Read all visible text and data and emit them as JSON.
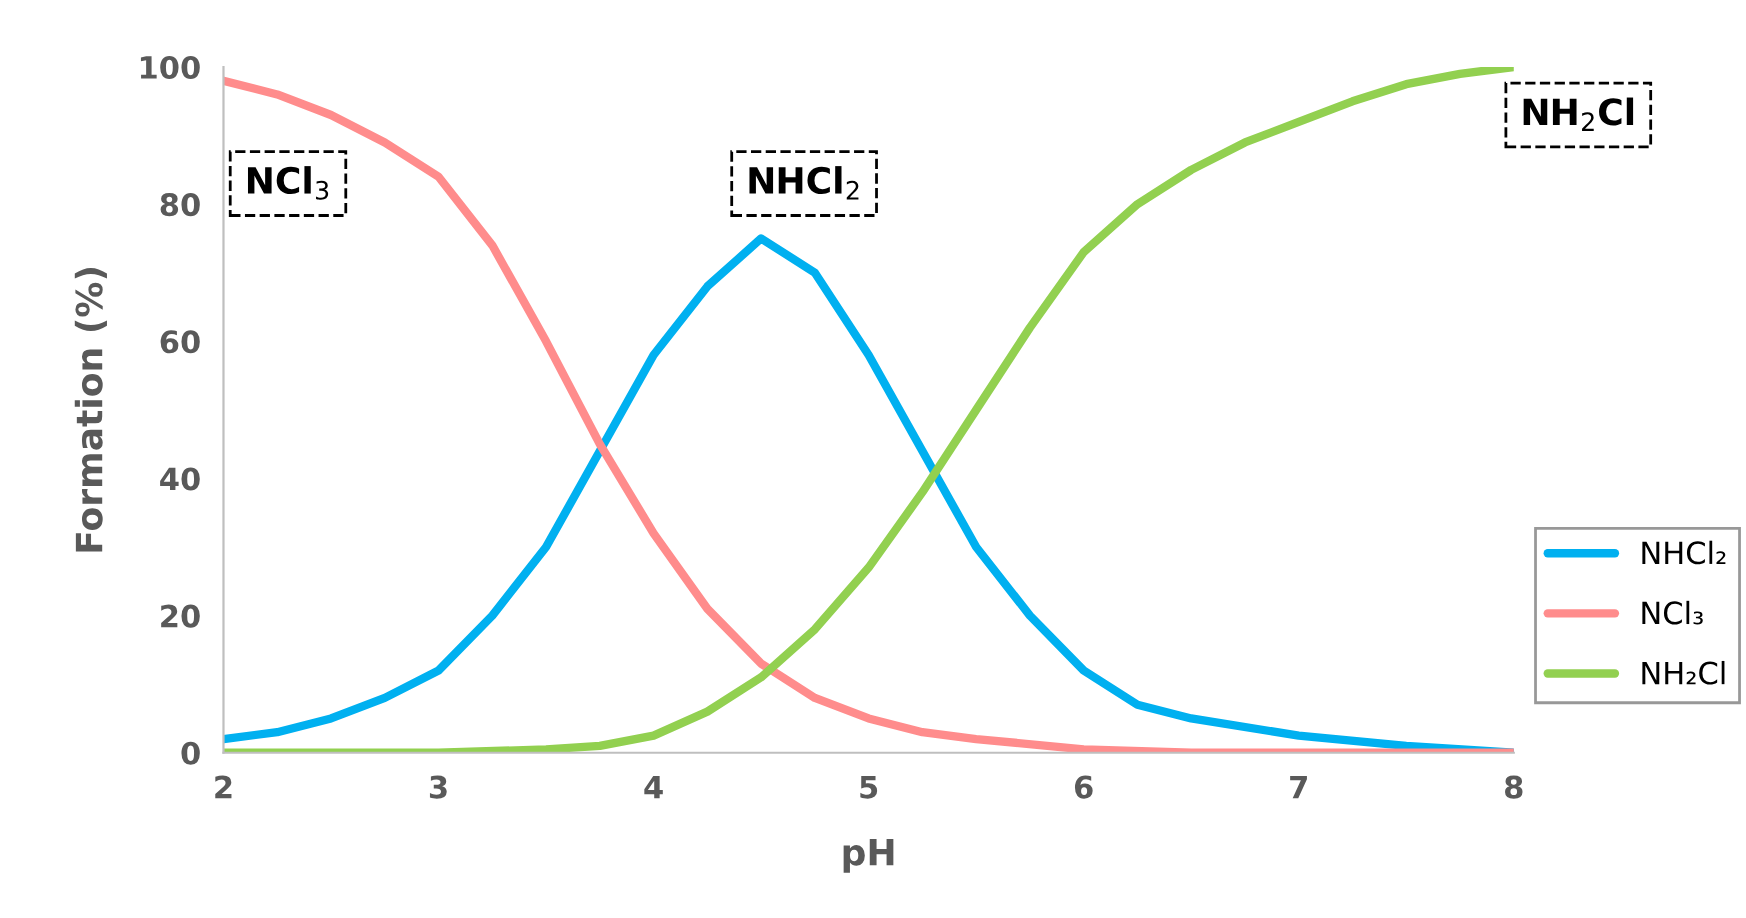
{
  "chart_data": {
    "type": "line",
    "xlabel": "pH",
    "ylabel": "Formation (%)",
    "xlim": [
      2,
      8
    ],
    "xticks": [
      2,
      3,
      4,
      5,
      6,
      7,
      8
    ],
    "ylim": [
      0,
      100
    ],
    "yticks": [
      0,
      20,
      40,
      60,
      80,
      100
    ],
    "grid": false,
    "legend": "right",
    "marker": "none",
    "line_style": "solid",
    "annotations": [
      "NCl$_{3}$",
      "NHCl$_{2}$",
      "NH$_{2}$Cl"
    ],
    "series": [
      {
        "name": "NHCl₂",
        "color": "#00b0f0",
        "x": [
          2.0,
          2.25,
          2.5,
          2.75,
          3.0,
          3.25,
          3.5,
          3.75,
          4.0,
          4.25,
          4.5,
          4.75,
          5.0,
          5.25,
          5.5,
          5.75,
          6.0,
          6.25,
          6.5,
          7.0,
          7.5,
          8.0
        ],
        "values": [
          2,
          3,
          5,
          8,
          12,
          20,
          30,
          44,
          58,
          68,
          75,
          70,
          58,
          44,
          30,
          20,
          12,
          7,
          5,
          2.5,
          1,
          0
        ]
      },
      {
        "name": "NCl₃",
        "color": "#ff8c8c",
        "x": [
          2.0,
          2.25,
          2.5,
          2.75,
          3.0,
          3.25,
          3.5,
          3.75,
          4.0,
          4.25,
          4.5,
          4.75,
          5.0,
          5.25,
          5.5,
          6.0,
          6.5,
          7.0,
          8.0
        ],
        "values": [
          98,
          96,
          93,
          89,
          84,
          74,
          60,
          45,
          32,
          21,
          13,
          8,
          5,
          3,
          2,
          0.5,
          0,
          0,
          0
        ]
      },
      {
        "name": "NH₂Cl",
        "color": "#92d050",
        "x": [
          2.0,
          2.5,
          3.0,
          3.5,
          3.75,
          4.0,
          4.25,
          4.5,
          4.75,
          5.0,
          5.25,
          5.5,
          5.75,
          6.0,
          6.25,
          6.5,
          6.75,
          7.0,
          7.25,
          7.5,
          7.75,
          8.0
        ],
        "values": [
          0,
          0,
          0,
          0.5,
          1,
          2.5,
          6,
          11,
          18,
          27,
          38,
          50,
          62,
          73,
          80,
          85,
          89,
          92,
          95,
          97.5,
          99,
          100
        ]
      }
    ]
  }
}
